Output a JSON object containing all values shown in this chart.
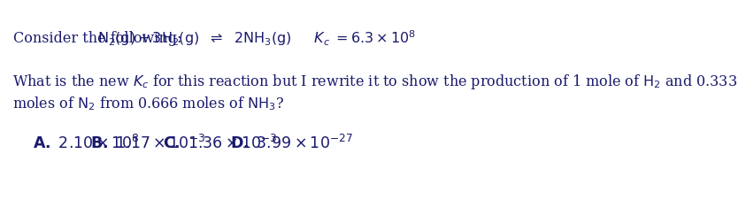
{
  "bg_color": "#ffffff",
  "text_color": "#1a1a6e",
  "line1_prefix": "Consider the following:",
  "line1_eq": "$\\mathrm{N_2(g) + 3H_2(g)}$  $\\rightleftharpoons$  $\\mathrm{2NH_3(g)}$     $K_c = 6.3 \\times 10^8$",
  "line2": "What is the new $K_c$ for this reaction but I rewrite it to show the production of 1 mole of $\\mathrm{H_2}$ and 0.333",
  "line3": "moles of $\\mathrm{N_2}$ from 0.666 moles of $\\mathrm{NH_3}$?",
  "ans_A_label": "A.",
  "ans_A_val": "2.10",
  "ans_A_exp": "8",
  "ans_B_label": "B.",
  "ans_B_val": "1.17",
  "ans_B_exp": "-3",
  "ans_C_label": "C.",
  "ans_C_val": "1.36",
  "ans_C_exp": "-3",
  "ans_D_label": "D.",
  "ans_D_val": "3.99",
  "ans_D_exp": "-27",
  "font_size": 11.5,
  "ans_font_size": 12.5
}
